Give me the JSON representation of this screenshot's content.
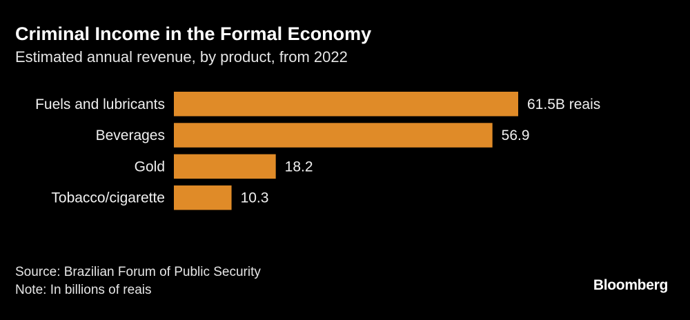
{
  "chart_data": {
    "type": "bar",
    "orientation": "horizontal",
    "title": "Criminal Income in the Formal Economy",
    "subtitle": "Estimated annual revenue, by product, from 2022",
    "categories": [
      "Fuels and lubricants",
      "Beverages",
      "Gold",
      "Tobacco/cigarette"
    ],
    "values": [
      61.5,
      56.9,
      18.2,
      10.3
    ],
    "data_labels": [
      "61.5B reais",
      "56.9",
      "18.2",
      "10.3"
    ],
    "xlabel": "",
    "ylabel": "",
    "xlim": [
      0,
      61.5
    ],
    "grid": false,
    "bar_color": "#e08b28",
    "background": "#000000"
  },
  "footer": {
    "source": "Source: Brazilian Forum of Public Security",
    "note": "Note: In billions of reais",
    "brand": "Bloomberg"
  }
}
